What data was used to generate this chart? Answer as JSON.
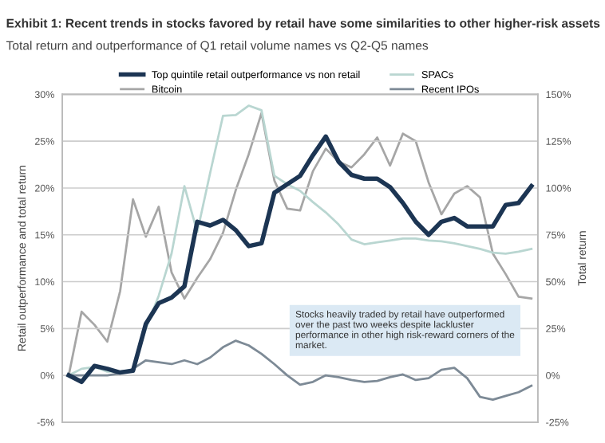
{
  "chart_data": {
    "type": "line",
    "title": "Exhibit 1: Recent trends in stocks favored by retail have some similarities to other higher-risk assets",
    "subtitle": "Total return and outperformance of Q1 retail volume names vs Q2-Q5 names",
    "ylabel": "Retail outperformance and total return",
    "y2label": "Total return",
    "categories": [
      null,
      null,
      null,
      null,
      null,
      null,
      null,
      null,
      null,
      null,
      null,
      null,
      null,
      null,
      null,
      null,
      null,
      null,
      null,
      null,
      null,
      null,
      null,
      null,
      null,
      null,
      null,
      null,
      null,
      null,
      null,
      null,
      null,
      null,
      null,
      null,
      null
    ],
    "series": [
      {
        "name": "Top quintile retail outperformance vs non retail",
        "color": "#1c3553",
        "values": [
          0,
          -0.7,
          1.0,
          0.7,
          0.3,
          0.5,
          5.5,
          7.7,
          8.3,
          9.5,
          16.4,
          16.0,
          16.6,
          15.5,
          13.8,
          14.1,
          19.5,
          20.4,
          21.3,
          23.5,
          25.5,
          22.8,
          21.4,
          21.0,
          21.0,
          20.1,
          18.4,
          16.4,
          15.0,
          16.4,
          16.8,
          15.9,
          15.9,
          15.9,
          18.2,
          18.4,
          20.2
        ]
      },
      {
        "name": "Bitcoin",
        "color": "#a6a6a6",
        "axis": "y2",
        "values": [
          0,
          34,
          27,
          18,
          45,
          94,
          74,
          90,
          55,
          41,
          52,
          62,
          76,
          99,
          118,
          140,
          104,
          89,
          88,
          109,
          121,
          114,
          111,
          118,
          127,
          112,
          129,
          125,
          103,
          86,
          97,
          101,
          95,
          65,
          54,
          42,
          41
        ]
      },
      {
        "name": "SPACs",
        "color": "#b9d6d1",
        "values": [
          0,
          0.7,
          0.9,
          0.4,
          0.4,
          0.6,
          5.0,
          8.5,
          13,
          20.2,
          15.3,
          21.6,
          27.7,
          27.8,
          28.8,
          28.3,
          21.3,
          20.4,
          19.7,
          18.5,
          17.4,
          16.1,
          14.5,
          14.0,
          14.2,
          14.4,
          14.6,
          14.6,
          14.4,
          14.3,
          14.1,
          13.8,
          13.5,
          13.1,
          13.0,
          13.2,
          13.5
        ]
      },
      {
        "name": "Recent IPOs",
        "color": "#7d8a96",
        "values": [
          0,
          0,
          0,
          0,
          0.2,
          0.7,
          1.6,
          1.4,
          1.2,
          1.6,
          1.2,
          1.9,
          3.0,
          3.7,
          3.2,
          2.3,
          1.2,
          0,
          -1.0,
          -0.7,
          0,
          -0.2,
          -0.5,
          -0.7,
          -0.6,
          -0.2,
          0.1,
          -0.5,
          -0.3,
          0.6,
          0.8,
          -0.3,
          -2.3,
          -2.6,
          -2.2,
          -1.8,
          -1.1
        ]
      }
    ],
    "ylim": [
      -5,
      30
    ],
    "yticks": [
      {
        "value": -5,
        "label": "-5%"
      },
      {
        "value": 0,
        "label": "0%"
      },
      {
        "value": 5,
        "label": "5%"
      },
      {
        "value": 10,
        "label": "10%"
      },
      {
        "value": 15,
        "label": "15%"
      },
      {
        "value": 20,
        "label": "20%"
      },
      {
        "value": 25,
        "label": "25%"
      },
      {
        "value": 30,
        "label": "30%"
      }
    ],
    "y2lim": [
      -25,
      150
    ],
    "y2ticks": [
      {
        "value": -25,
        "label": "-25%"
      },
      {
        "value": 0,
        "label": "0%"
      },
      {
        "value": 25,
        "label": "25%"
      },
      {
        "value": 50,
        "label": "50%"
      },
      {
        "value": 75,
        "label": "75%"
      },
      {
        "value": 100,
        "label": "100%"
      },
      {
        "value": 125,
        "label": "125%"
      },
      {
        "value": 150,
        "label": "150%"
      }
    ],
    "annotations": [
      "Stocks heavily traded by retail have outperformed over the past two weeks despite lackluster performance in other high risk-reward corners of the market."
    ],
    "grid": "y",
    "legend": "top",
    "marker": "none",
    "line_style": "solid"
  }
}
